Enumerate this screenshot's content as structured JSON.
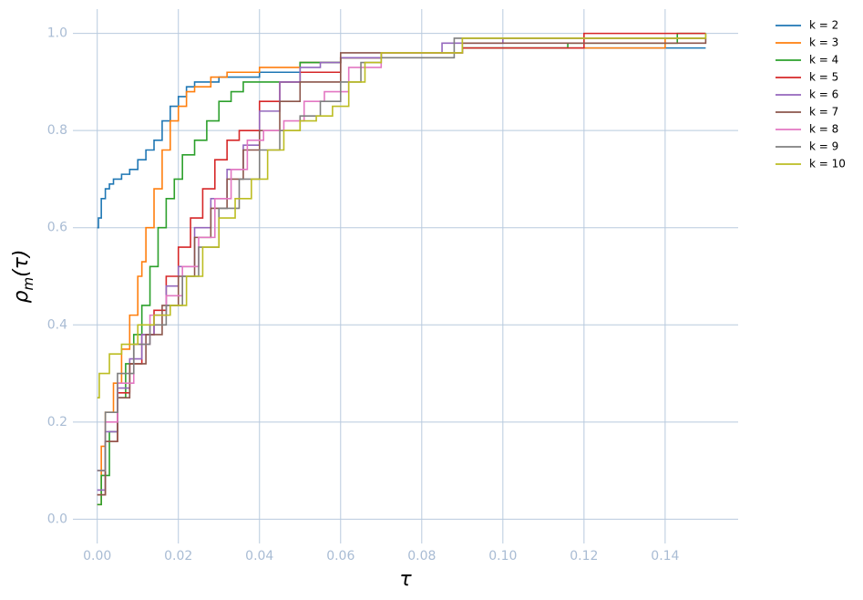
{
  "chart_data": {
    "type": "line",
    "step": "post",
    "xlabel": "τ",
    "ylabel": [
      "ρ",
      "m",
      "(τ)"
    ],
    "xlim": [
      -0.006,
      0.158
    ],
    "ylim": [
      -0.05,
      1.05
    ],
    "grid": true,
    "legend": "outside-upper-right",
    "xticks": [
      {
        "value": 0,
        "label": "0.00"
      },
      {
        "value": 0.02,
        "label": "0.02"
      },
      {
        "value": 0.04,
        "label": "0.04"
      },
      {
        "value": 0.06,
        "label": "0.06"
      },
      {
        "value": 0.08,
        "label": "0.08"
      },
      {
        "value": 0.1,
        "label": "0.10"
      },
      {
        "value": 0.12,
        "label": "0.12"
      },
      {
        "value": 0.14,
        "label": "0.14"
      }
    ],
    "yticks": [
      {
        "value": 0,
        "label": "0.0"
      },
      {
        "value": 0.2,
        "label": "0.2"
      },
      {
        "value": 0.4,
        "label": "0.4"
      },
      {
        "value": 0.6,
        "label": "0.6"
      },
      {
        "value": 0.8,
        "label": "0.8"
      },
      {
        "value": 1,
        "label": "1.0"
      }
    ],
    "series": [
      {
        "name": "k = 2",
        "color": "#1f77b4",
        "x": [
          0,
          0.0003,
          0.001,
          0.002,
          0.003,
          0.004,
          0.006,
          0.008,
          0.01,
          0.012,
          0.014,
          0.016,
          0.018,
          0.02,
          0.022,
          0.024,
          0.03,
          0.04,
          0.05,
          0.06,
          0.07,
          0.09,
          0.11,
          0.15
        ],
        "values": [
          0.6,
          0.62,
          0.66,
          0.68,
          0.69,
          0.7,
          0.71,
          0.72,
          0.74,
          0.76,
          0.78,
          0.82,
          0.85,
          0.87,
          0.89,
          0.9,
          0.91,
          0.92,
          0.94,
          0.95,
          0.96,
          0.97,
          0.97,
          0.97
        ]
      },
      {
        "name": "k = 3",
        "color": "#ff7f0e",
        "x": [
          0,
          0.001,
          0.002,
          0.004,
          0.006,
          0.008,
          0.01,
          0.011,
          0.012,
          0.014,
          0.016,
          0.018,
          0.02,
          0.022,
          0.024,
          0.028,
          0.032,
          0.04,
          0.05,
          0.06,
          0.07,
          0.09,
          0.11,
          0.14,
          0.15
        ],
        "values": [
          0.03,
          0.15,
          0.22,
          0.28,
          0.35,
          0.42,
          0.5,
          0.53,
          0.6,
          0.68,
          0.76,
          0.82,
          0.85,
          0.88,
          0.89,
          0.91,
          0.92,
          0.93,
          0.94,
          0.95,
          0.96,
          0.97,
          0.97,
          0.99,
          0.99
        ]
      },
      {
        "name": "k = 4",
        "color": "#2ca02c",
        "x": [
          0,
          0.001,
          0.003,
          0.005,
          0.007,
          0.009,
          0.011,
          0.013,
          0.015,
          0.017,
          0.019,
          0.021,
          0.024,
          0.027,
          0.03,
          0.033,
          0.036,
          0.04,
          0.05,
          0.06,
          0.07,
          0.09,
          0.116,
          0.143,
          0.15
        ],
        "values": [
          0.03,
          0.09,
          0.18,
          0.25,
          0.32,
          0.38,
          0.44,
          0.52,
          0.6,
          0.66,
          0.7,
          0.75,
          0.78,
          0.82,
          0.86,
          0.88,
          0.9,
          0.9,
          0.94,
          0.95,
          0.96,
          0.97,
          0.98,
          1,
          1
        ]
      },
      {
        "name": "k = 5",
        "color": "#d62728",
        "x": [
          0,
          0.002,
          0.005,
          0.008,
          0.011,
          0.014,
          0.017,
          0.02,
          0.023,
          0.026,
          0.029,
          0.032,
          0.035,
          0.04,
          0.045,
          0.05,
          0.06,
          0.07,
          0.09,
          0.12,
          0.15
        ],
        "values": [
          0.05,
          0.16,
          0.26,
          0.32,
          0.38,
          0.43,
          0.5,
          0.56,
          0.62,
          0.68,
          0.74,
          0.78,
          0.8,
          0.86,
          0.9,
          0.92,
          0.95,
          0.96,
          0.97,
          1,
          1
        ]
      },
      {
        "name": "k = 6",
        "color": "#9467bd",
        "x": [
          0,
          0.002,
          0.005,
          0.008,
          0.011,
          0.014,
          0.017,
          0.02,
          0.024,
          0.028,
          0.032,
          0.036,
          0.04,
          0.045,
          0.05,
          0.055,
          0.06,
          0.07,
          0.085,
          0.1,
          0.15
        ],
        "values": [
          0.06,
          0.18,
          0.27,
          0.33,
          0.38,
          0.42,
          0.48,
          0.52,
          0.6,
          0.66,
          0.72,
          0.77,
          0.84,
          0.9,
          0.93,
          0.94,
          0.95,
          0.96,
          0.98,
          0.99,
          0.99
        ]
      },
      {
        "name": "k = 7",
        "color": "#8c564b",
        "x": [
          0,
          0.002,
          0.005,
          0.008,
          0.012,
          0.016,
          0.02,
          0.024,
          0.028,
          0.032,
          0.036,
          0.04,
          0.045,
          0.05,
          0.06,
          0.07,
          0.09,
          0.15
        ],
        "values": [
          0.05,
          0.16,
          0.25,
          0.32,
          0.38,
          0.44,
          0.5,
          0.58,
          0.64,
          0.7,
          0.76,
          0.8,
          0.86,
          0.9,
          0.96,
          0.96,
          0.98,
          0.99
        ]
      },
      {
        "name": "k = 8",
        "color": "#e377c2",
        "x": [
          0,
          0.002,
          0.005,
          0.009,
          0.013,
          0.017,
          0.021,
          0.025,
          0.029,
          0.033,
          0.037,
          0.041,
          0.046,
          0.051,
          0.056,
          0.062,
          0.07,
          0.09,
          0.15
        ],
        "values": [
          0.1,
          0.2,
          0.28,
          0.36,
          0.42,
          0.46,
          0.52,
          0.58,
          0.66,
          0.72,
          0.78,
          0.8,
          0.82,
          0.86,
          0.88,
          0.93,
          0.96,
          0.99,
          0.99
        ]
      },
      {
        "name": "k = 9",
        "color": "#7f7f7f",
        "x": [
          0,
          0.002,
          0.005,
          0.009,
          0.013,
          0.017,
          0.021,
          0.025,
          0.03,
          0.035,
          0.04,
          0.045,
          0.05,
          0.055,
          0.06,
          0.065,
          0.07,
          0.088,
          0.15
        ],
        "values": [
          0.1,
          0.22,
          0.3,
          0.36,
          0.4,
          0.44,
          0.5,
          0.56,
          0.64,
          0.7,
          0.76,
          0.8,
          0.83,
          0.86,
          0.9,
          0.94,
          0.95,
          0.99,
          1
        ]
      },
      {
        "name": "k = 10",
        "color": "#bcbd22",
        "x": [
          0,
          0.0005,
          0.003,
          0.006,
          0.01,
          0.014,
          0.018,
          0.022,
          0.026,
          0.03,
          0.034,
          0.038,
          0.042,
          0.046,
          0.05,
          0.054,
          0.058,
          0.062,
          0.066,
          0.07,
          0.09,
          0.15
        ],
        "values": [
          0.25,
          0.3,
          0.34,
          0.36,
          0.4,
          0.42,
          0.44,
          0.5,
          0.56,
          0.62,
          0.66,
          0.7,
          0.76,
          0.8,
          0.82,
          0.83,
          0.85,
          0.9,
          0.94,
          0.96,
          0.99,
          1
        ]
      }
    ]
  }
}
